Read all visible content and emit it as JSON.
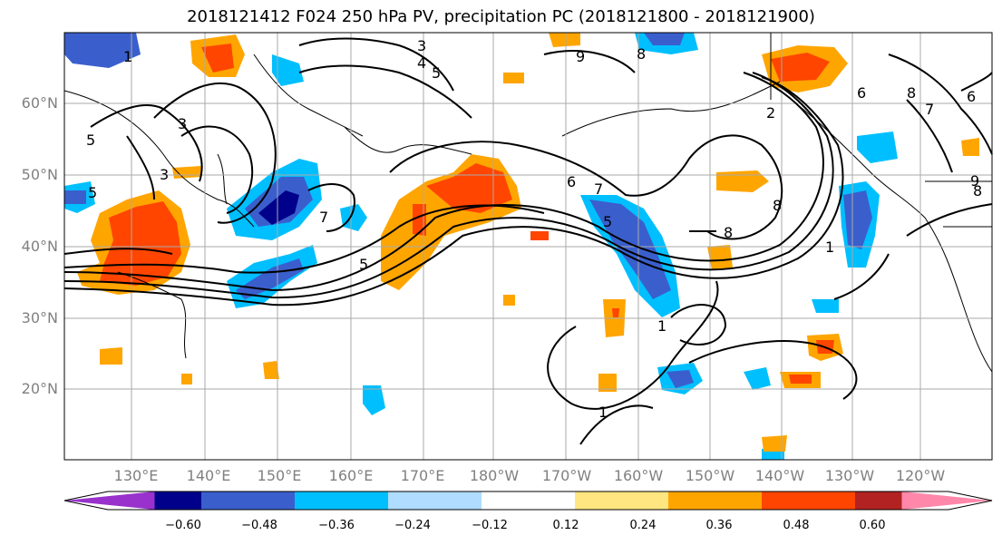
{
  "title": "2018121412 F024 250 hPa PV, precipitation PC (2018121800 - 2018121900)",
  "map": {
    "lat_labels": [
      "60°N",
      "50°N",
      "40°N",
      "30°N",
      "20°N"
    ],
    "lon_labels": [
      "130°E",
      "140°E",
      "150°E",
      "160°E",
      "170°E",
      "180°W",
      "170°W",
      "160°W",
      "150°W",
      "140°W",
      "130°W",
      "120°W"
    ],
    "contour_labels": [
      "3",
      "4",
      "5",
      "5",
      "3",
      "5",
      "7",
      "8",
      "9",
      "1",
      "5",
      "6",
      "7",
      "8",
      "8",
      "8",
      "1",
      "1",
      "1",
      "7",
      "6",
      "6",
      "9",
      "8",
      "5",
      "3",
      "2"
    ]
  },
  "colorbar": {
    "ticks": [
      "−0.60",
      "−0.48",
      "−0.36",
      "−0.24",
      "−0.12",
      "0.12",
      "0.24",
      "0.36",
      "0.48",
      "0.60"
    ],
    "colors": [
      "#9932cc",
      "#00008b",
      "#3a5fcd",
      "#00bfff",
      "#afdcff",
      "#ffffff",
      "#ffe680",
      "#ffa500",
      "#ff4500",
      "#b22222",
      "#ff88aa"
    ]
  },
  "colors": {
    "grid": "#aaaaaa",
    "contour": "#000000"
  }
}
